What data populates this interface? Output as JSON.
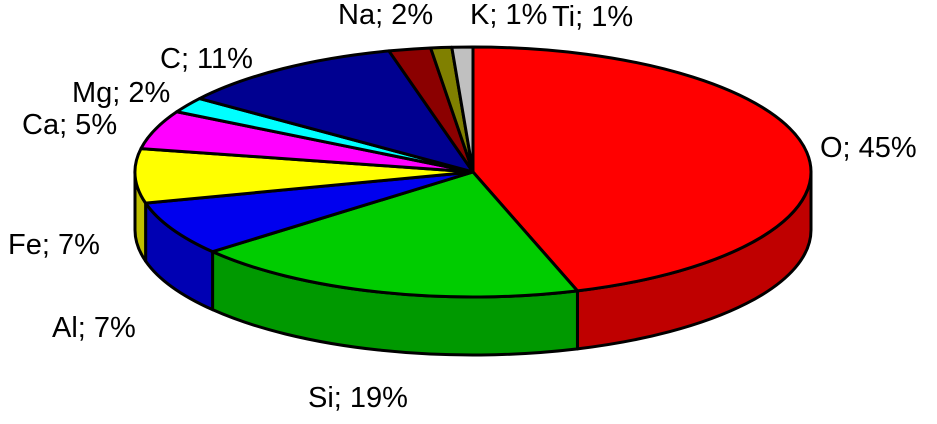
{
  "chart_data": {
    "type": "pie",
    "style": "3d",
    "unit": "%",
    "start_angle_deg": -90,
    "direction": "clockwise",
    "legend_position": "none",
    "background_color": "#FFFFFF",
    "outline_color": "#000000",
    "points": [
      {
        "element": "O",
        "value": 45,
        "label": "O; 45%",
        "color": "#FF0000"
      },
      {
        "element": "Si",
        "value": 19,
        "label": "Si; 19%",
        "color": "#00CC00"
      },
      {
        "element": "Al",
        "value": 7,
        "label": "Al; 7%",
        "color": "#0000EE"
      },
      {
        "element": "Fe",
        "value": 7,
        "label": "Fe; 7%",
        "color": "#FFFF00"
      },
      {
        "element": "Ca",
        "value": 5,
        "label": "Ca; 5%",
        "color": "#FF00FF"
      },
      {
        "element": "Mg",
        "value": 2,
        "label": "Mg; 2%",
        "color": "#00FFFF"
      },
      {
        "element": "C",
        "value": 11,
        "label": "C; 11%",
        "color": "#000090"
      },
      {
        "element": "Na",
        "value": 2,
        "label": "Na; 2%",
        "color": "#8B0000"
      },
      {
        "element": "K",
        "value": 1,
        "label": "K; 1%",
        "color": "#808000"
      },
      {
        "element": "Ti",
        "value": 1,
        "label": "Ti; 1%",
        "color": "#C0C0C0"
      }
    ]
  }
}
